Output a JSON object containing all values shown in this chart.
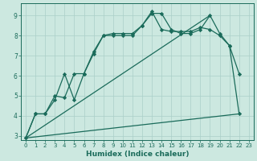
{
  "xlabel": "Humidex (Indice chaleur)",
  "xlim": [
    -0.5,
    23.5
  ],
  "ylim": [
    2.8,
    9.6
  ],
  "yticks": [
    3,
    4,
    5,
    6,
    7,
    8,
    9
  ],
  "xticks": [
    0,
    1,
    2,
    3,
    4,
    5,
    6,
    7,
    8,
    9,
    10,
    11,
    12,
    13,
    14,
    15,
    16,
    17,
    18,
    19,
    20,
    21,
    22,
    23
  ],
  "bg_color": "#cce8e0",
  "grid_color": "#aacfc8",
  "line_color": "#1a6b5a",
  "line_width": 0.9,
  "marker": "D",
  "marker_size": 2.2,
  "series": [
    {
      "x": [
        0,
        1,
        2,
        3,
        4,
        5,
        6,
        7,
        8,
        9,
        10,
        11,
        12,
        13,
        14,
        15,
        16,
        17,
        18,
        19,
        20,
        21,
        22
      ],
      "y": [
        2.9,
        4.1,
        4.1,
        4.8,
        6.1,
        4.8,
        6.1,
        7.1,
        8.0,
        8.0,
        8.0,
        8.0,
        8.5,
        9.1,
        9.1,
        8.3,
        8.1,
        8.1,
        8.3,
        9.0,
        8.1,
        7.5,
        6.1
      ],
      "markers": true
    },
    {
      "x": [
        0,
        1,
        2,
        3,
        4,
        5,
        6,
        7,
        8,
        9,
        10,
        11,
        12,
        13,
        14,
        15,
        16,
        17,
        18,
        19,
        20,
        21,
        22
      ],
      "y": [
        2.9,
        4.1,
        4.1,
        5.0,
        4.9,
        6.1,
        6.1,
        7.2,
        8.0,
        8.1,
        8.1,
        8.1,
        8.5,
        9.2,
        8.3,
        8.2,
        8.2,
        8.2,
        8.4,
        8.3,
        8.0,
        7.5,
        4.1
      ],
      "markers": true
    },
    {
      "x": [
        0,
        19
      ],
      "y": [
        2.9,
        9.0
      ],
      "markers": false
    },
    {
      "x": [
        0,
        22
      ],
      "y": [
        2.9,
        4.1
      ],
      "markers": false
    }
  ]
}
